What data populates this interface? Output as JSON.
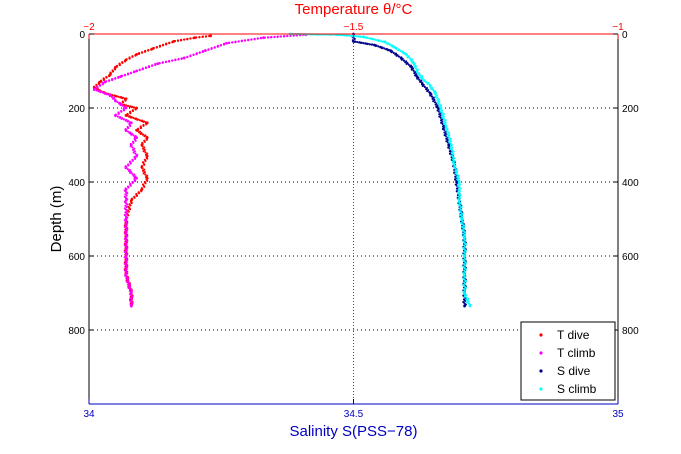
{
  "chart_data": {
    "type": "scatter",
    "title": "Temperature θ/°C",
    "xlabel": "Salinity S(PSS−78)",
    "ylabel": "Depth (m)",
    "x_bottom": {
      "lim": [
        34,
        35
      ],
      "ticks": [
        "34",
        "34.5",
        "35"
      ],
      "tick_values": [
        34,
        34.5,
        35
      ]
    },
    "x_top": {
      "lim": [
        -2,
        -1
      ],
      "ticks": [
        "−2",
        "−1.5",
        "−1"
      ],
      "tick_values": [
        -2,
        -1.5,
        -1
      ]
    },
    "ylim": [
      1000,
      0
    ],
    "y_ticks": [
      "0",
      "200",
      "400",
      "600",
      "800"
    ],
    "y_tick_values": [
      0,
      200,
      400,
      600,
      800
    ],
    "grid": "dotted",
    "legend_position": "bottom-right",
    "colors": {
      "title": "#ff0000",
      "xlabel": "#0000c0",
      "t_dive": "#ff0000",
      "t_climb": "#ff00ff",
      "s_dive": "#00008b",
      "s_climb": "#00ffff",
      "center_line": "#ff0000"
    },
    "series": [
      {
        "name": "T dive",
        "axis": "temperature",
        "color": "#ff0000",
        "points": [
          [
            -1.77,
            5
          ],
          [
            -1.8,
            10
          ],
          [
            -1.84,
            20
          ],
          [
            -1.88,
            40
          ],
          [
            -1.91,
            55
          ],
          [
            -1.93,
            70
          ],
          [
            -1.95,
            90
          ],
          [
            -1.96,
            110
          ],
          [
            -1.98,
            130
          ],
          [
            -1.99,
            145
          ],
          [
            -1.97,
            160
          ],
          [
            -1.93,
            175
          ],
          [
            -1.94,
            190
          ],
          [
            -1.91,
            200
          ],
          [
            -1.93,
            220
          ],
          [
            -1.89,
            240
          ],
          [
            -1.91,
            260
          ],
          [
            -1.89,
            280
          ],
          [
            -1.9,
            300
          ],
          [
            -1.89,
            330
          ],
          [
            -1.9,
            360
          ],
          [
            -1.89,
            390
          ],
          [
            -1.9,
            420
          ],
          [
            -1.92,
            450
          ],
          [
            -1.93,
            500
          ],
          [
            -1.93,
            550
          ],
          [
            -1.93,
            600
          ],
          [
            -1.93,
            650
          ],
          [
            -1.92,
            700
          ],
          [
            -1.92,
            735
          ]
        ]
      },
      {
        "name": "T climb",
        "axis": "temperature",
        "color": "#ff00ff",
        "points": [
          [
            -1.59,
            2
          ],
          [
            -1.67,
            10
          ],
          [
            -1.74,
            25
          ],
          [
            -1.78,
            45
          ],
          [
            -1.82,
            65
          ],
          [
            -1.87,
            80
          ],
          [
            -1.91,
            100
          ],
          [
            -1.94,
            115
          ],
          [
            -1.97,
            130
          ],
          [
            -1.99,
            150
          ],
          [
            -1.96,
            165
          ],
          [
            -1.95,
            180
          ],
          [
            -1.93,
            200
          ],
          [
            -1.95,
            220
          ],
          [
            -1.92,
            240
          ],
          [
            -1.93,
            260
          ],
          [
            -1.91,
            280
          ],
          [
            -1.92,
            300
          ],
          [
            -1.91,
            330
          ],
          [
            -1.93,
            360
          ],
          [
            -1.91,
            390
          ],
          [
            -1.93,
            420
          ],
          [
            -1.93,
            450
          ],
          [
            -1.93,
            500
          ],
          [
            -1.93,
            550
          ],
          [
            -1.93,
            600
          ],
          [
            -1.93,
            650
          ],
          [
            -1.92,
            700
          ],
          [
            -1.92,
            735
          ]
        ]
      },
      {
        "name": "S dive",
        "axis": "salinity",
        "color": "#00008b",
        "points": [
          [
            34.5,
            0
          ],
          [
            34.5,
            20
          ],
          [
            34.54,
            30
          ],
          [
            34.57,
            45
          ],
          [
            34.59,
            65
          ],
          [
            34.61,
            90
          ],
          [
            34.62,
            115
          ],
          [
            34.63,
            135
          ],
          [
            34.645,
            160
          ],
          [
            34.66,
            200
          ],
          [
            34.67,
            250
          ],
          [
            34.68,
            300
          ],
          [
            34.69,
            350
          ],
          [
            34.695,
            400
          ],
          [
            34.7,
            450
          ],
          [
            34.705,
            500
          ],
          [
            34.71,
            550
          ],
          [
            34.71,
            600
          ],
          [
            34.71,
            650
          ],
          [
            34.71,
            700
          ],
          [
            34.71,
            735
          ]
        ]
      },
      {
        "name": "S climb",
        "axis": "salinity",
        "color": "#00ffff",
        "points": [
          [
            34.38,
            0
          ],
          [
            34.47,
            2
          ],
          [
            34.52,
            8
          ],
          [
            34.56,
            22
          ],
          [
            34.58,
            38
          ],
          [
            34.6,
            55
          ],
          [
            34.615,
            80
          ],
          [
            34.62,
            100
          ],
          [
            34.63,
            120
          ],
          [
            34.645,
            140
          ],
          [
            34.655,
            160
          ],
          [
            34.665,
            200
          ],
          [
            34.675,
            250
          ],
          [
            34.685,
            300
          ],
          [
            34.69,
            350
          ],
          [
            34.7,
            400
          ],
          [
            34.7,
            450
          ],
          [
            34.705,
            500
          ],
          [
            34.71,
            550
          ],
          [
            34.71,
            600
          ],
          [
            34.71,
            650
          ],
          [
            34.71,
            700
          ],
          [
            34.72,
            735
          ]
        ]
      }
    ]
  }
}
